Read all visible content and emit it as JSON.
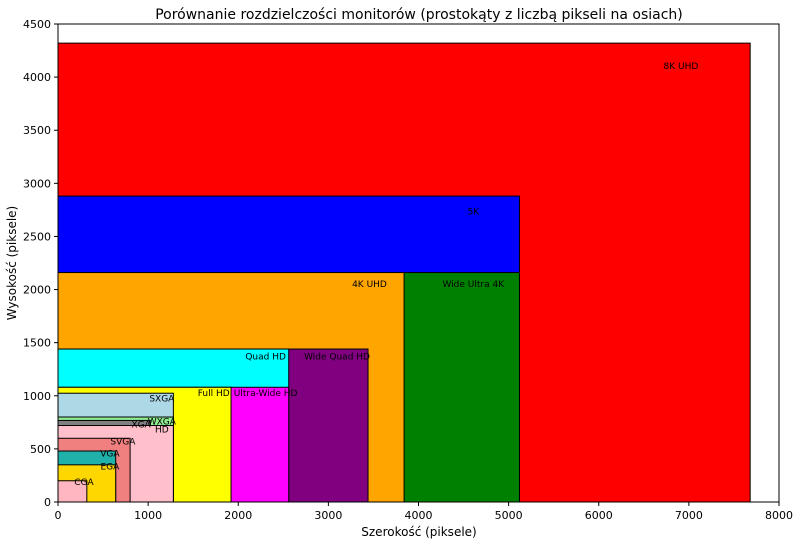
{
  "chart_data": {
    "type": "bar",
    "title": "Porównanie rozdzielczości monitorów (prostokąty z liczbą pikseli na osiach)",
    "xlabel": "Szerokość (piksele)",
    "ylabel": "Wysokość (piksele)",
    "xlim": [
      0,
      8000
    ],
    "ylim": [
      0,
      4500
    ],
    "xticks": [
      0,
      1000,
      2000,
      3000,
      4000,
      5000,
      6000,
      7000,
      8000
    ],
    "yticks": [
      0,
      500,
      1000,
      1500,
      2000,
      2500,
      3000,
      3500,
      4000,
      4500
    ],
    "grid": false,
    "rectangles": [
      {
        "name": "8K UHD",
        "width": 7680,
        "height": 4320,
        "color": "#ff0000"
      },
      {
        "name": "5K",
        "width": 5120,
        "height": 2880,
        "color": "#0000ff"
      },
      {
        "name": "Wide Ultra 4K",
        "width": 5120,
        "height": 2160,
        "color": "#008000"
      },
      {
        "name": "4K UHD",
        "width": 3840,
        "height": 2160,
        "color": "#ffa500"
      },
      {
        "name": "Wide Quad HD",
        "width": 3440,
        "height": 1440,
        "color": "#800080"
      },
      {
        "name": "Quad HD",
        "width": 2560,
        "height": 1440,
        "color": "#00ffff"
      },
      {
        "name": "Ultra-Wide HD",
        "width": 2560,
        "height": 1080,
        "color": "#ff00ff"
      },
      {
        "name": "Full HD",
        "width": 1920,
        "height": 1080,
        "color": "#ffff00"
      },
      {
        "name": "SXGA",
        "width": 1280,
        "height": 1024,
        "color": "#add8e6"
      },
      {
        "name": "WXGA",
        "width": 1280,
        "height": 800,
        "color": "#90ee90"
      },
      {
        "name": "XGA",
        "width": 1024,
        "height": 768,
        "color": "#808080"
      },
      {
        "name": "HD",
        "width": 1280,
        "height": 720,
        "color": "#ffc0cb"
      },
      {
        "name": "SVGA",
        "width": 800,
        "height": 600,
        "color": "#f08080"
      },
      {
        "name": "VGA",
        "width": 640,
        "height": 480,
        "color": "#20b2aa"
      },
      {
        "name": "EGA",
        "width": 640,
        "height": 350,
        "color": "#ffd700"
      },
      {
        "name": "CGA",
        "width": 320,
        "height": 200,
        "color": "#ffb6c1"
      }
    ]
  }
}
